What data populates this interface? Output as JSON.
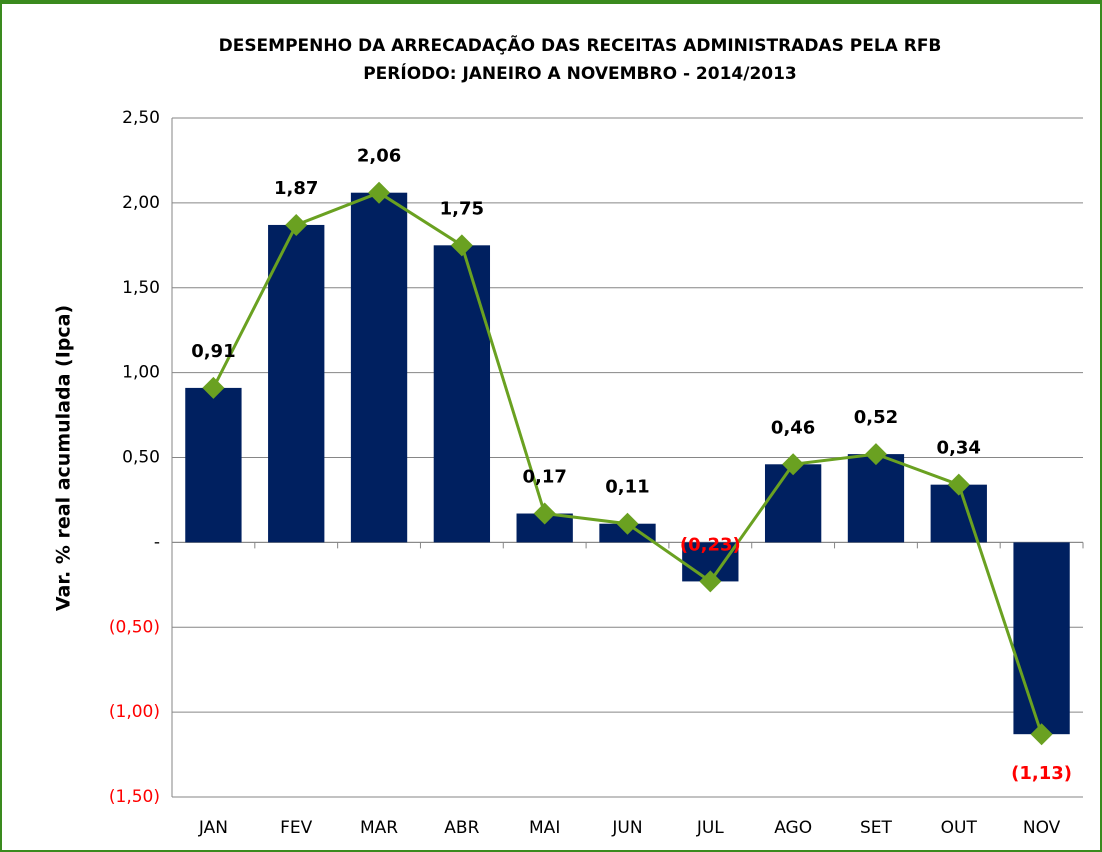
{
  "chart_data": {
    "type": "bar",
    "title": "DESEMPENHO DA ARRECADAÇÃO DAS RECEITAS ADMINISTRADAS PELA RFB",
    "subtitle": "PERÍODO: JANEIRO A NOVEMBRO - 2014/2013",
    "y_label": "Var. % real acumulada (Ipca)",
    "categories": [
      "JAN",
      "FEV",
      "MAR",
      "ABR",
      "MAI",
      "JUN",
      "JUL",
      "AGO",
      "SET",
      "OUT",
      "NOV"
    ],
    "values": [
      0.91,
      1.87,
      2.06,
      1.75,
      0.17,
      0.11,
      -0.23,
      0.46,
      0.52,
      0.34,
      -1.13
    ],
    "value_labels": [
      "0,91",
      "1,87",
      "2,06",
      "1,75",
      "0,17",
      "0,11",
      "(0,23)",
      "0,46",
      "0,52",
      "0,34",
      "(1,13)"
    ],
    "color": "#002060",
    "line_color": "#6aa121",
    "marker_color": "#6aa121",
    "negative_label_color": "#ff0000",
    "ylim": [
      -1.5,
      2.5
    ],
    "yticks": [
      {
        "value": 2.5,
        "label": "2,50"
      },
      {
        "value": 2,
        "label": "2,00"
      },
      {
        "value": 1.5,
        "label": "1,50"
      },
      {
        "value": 1,
        "label": "1,00"
      },
      {
        "value": 0.5,
        "label": "0,50"
      },
      {
        "value": 0,
        "label": "-"
      },
      {
        "value": -0.5,
        "label": "(0,50)"
      },
      {
        "value": -1,
        "label": "(1,00)"
      },
      {
        "value": -1.5,
        "label": "(1,50)"
      }
    ],
    "grid": true
  }
}
